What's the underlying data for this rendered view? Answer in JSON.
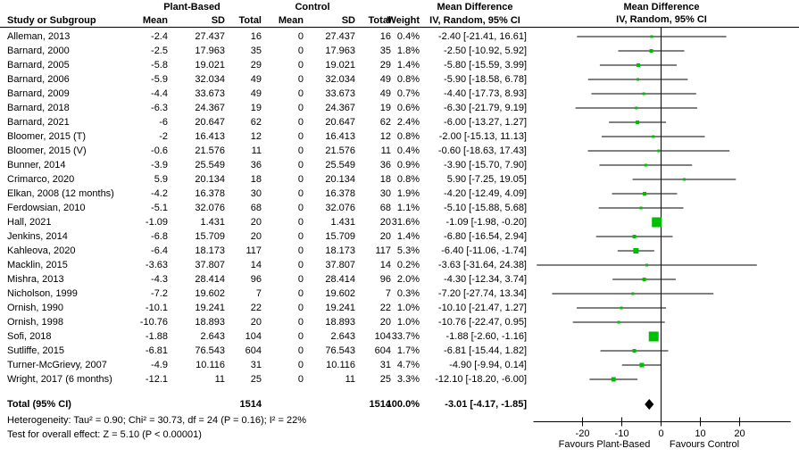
{
  "header": {
    "study_col": "Study or Subgroup",
    "group1": "Plant-Based",
    "group2": "Control",
    "mean": "Mean",
    "sd": "SD",
    "total": "Total",
    "weight": "Weight",
    "md_title": "Mean Difference",
    "md_method": "IV, Random, 95% CI"
  },
  "totals": {
    "label": "Total (95% CI)",
    "n1": "1514",
    "n2": "1514",
    "weight": "100.0%",
    "ci_text": "-3.01 [-4.17, -1.85]"
  },
  "footnotes": {
    "heterogeneity": "Heterogeneity: Tau² = 0.90; Chi² = 30.73, df = 24 (P = 0.16); I² = 22%",
    "overall_effect": "Test for overall effect: Z = 5.10 (P < 0.00001)"
  },
  "chart_data": {
    "type": "forest",
    "effect_measure": "Mean Difference",
    "model": "IV, Random, 95% CI",
    "x_ticks": [
      -20,
      -10,
      0,
      10,
      20
    ],
    "x_range": [
      -32.5,
      33
    ],
    "favours_left": "Favours Plant-Based",
    "favours_right": "Favours Control",
    "marker_color": "#00BF00",
    "line_color": "#000000",
    "pooled": {
      "md": -3.01,
      "lo": -4.17,
      "hi": -1.85,
      "weight": 100.0
    },
    "studies": [
      {
        "study": "Alleman, 2013",
        "mean1": "-2.4",
        "sd1": "27.437",
        "n1": "16",
        "mean2": "0",
        "sd2": "27.437",
        "n2": "16",
        "weight": "0.4%",
        "ci_text": "-2.40 [-21.41, 16.61]",
        "md": -2.4,
        "lo": -21.41,
        "hi": 16.61,
        "w": 0.4
      },
      {
        "study": "Barnard, 2000",
        "mean1": "-2.5",
        "sd1": "17.963",
        "n1": "35",
        "mean2": "0",
        "sd2": "17.963",
        "n2": "35",
        "weight": "1.8%",
        "ci_text": "-2.50 [-10.92, 5.92]",
        "md": -2.5,
        "lo": -10.92,
        "hi": 5.92,
        "w": 1.8
      },
      {
        "study": "Barnard, 2005",
        "mean1": "-5.8",
        "sd1": "19.021",
        "n1": "29",
        "mean2": "0",
        "sd2": "19.021",
        "n2": "29",
        "weight": "1.4%",
        "ci_text": "-5.80 [-15.59, 3.99]",
        "md": -5.8,
        "lo": -15.59,
        "hi": 3.99,
        "w": 1.4
      },
      {
        "study": "Barnard, 2006",
        "mean1": "-5.9",
        "sd1": "32.034",
        "n1": "49",
        "mean2": "0",
        "sd2": "32.034",
        "n2": "49",
        "weight": "0.8%",
        "ci_text": "-5.90 [-18.58, 6.78]",
        "md": -5.9,
        "lo": -18.58,
        "hi": 6.78,
        "w": 0.8
      },
      {
        "study": "Barnard, 2009",
        "mean1": "-4.4",
        "sd1": "33.673",
        "n1": "49",
        "mean2": "0",
        "sd2": "33.673",
        "n2": "49",
        "weight": "0.7%",
        "ci_text": "-4.40 [-17.73, 8.93]",
        "md": -4.4,
        "lo": -17.73,
        "hi": 8.93,
        "w": 0.7
      },
      {
        "study": "Barnard, 2018",
        "mean1": "-6.3",
        "sd1": "24.367",
        "n1": "19",
        "mean2": "0",
        "sd2": "24.367",
        "n2": "19",
        "weight": "0.6%",
        "ci_text": "-6.30 [-21.79, 9.19]",
        "md": -6.3,
        "lo": -21.79,
        "hi": 9.19,
        "w": 0.6
      },
      {
        "study": "Barnard, 2021",
        "mean1": "-6",
        "sd1": "20.647",
        "n1": "62",
        "mean2": "0",
        "sd2": "20.647",
        "n2": "62",
        "weight": "2.4%",
        "ci_text": "-6.00 [-13.27, 1.27]",
        "md": -6.0,
        "lo": -13.27,
        "hi": 1.27,
        "w": 2.4
      },
      {
        "study": "Bloomer, 2015 (T)",
        "mean1": "-2",
        "sd1": "16.413",
        "n1": "12",
        "mean2": "0",
        "sd2": "16.413",
        "n2": "12",
        "weight": "0.8%",
        "ci_text": "-2.00 [-15.13, 11.13]",
        "md": -2.0,
        "lo": -15.13,
        "hi": 11.13,
        "w": 0.8
      },
      {
        "study": "Bloomer, 2015 (V)",
        "mean1": "-0.6",
        "sd1": "21.576",
        "n1": "11",
        "mean2": "0",
        "sd2": "21.576",
        "n2": "11",
        "weight": "0.4%",
        "ci_text": "-0.60 [-18.63, 17.43]",
        "md": -0.6,
        "lo": -18.63,
        "hi": 17.43,
        "w": 0.4
      },
      {
        "study": "Bunner, 2014",
        "mean1": "-3.9",
        "sd1": "25.549",
        "n1": "36",
        "mean2": "0",
        "sd2": "25.549",
        "n2": "36",
        "weight": "0.9%",
        "ci_text": "-3.90 [-15.70, 7.90]",
        "md": -3.9,
        "lo": -15.7,
        "hi": 7.9,
        "w": 0.9
      },
      {
        "study": "Crimarco, 2020",
        "mean1": "5.9",
        "sd1": "20.134",
        "n1": "18",
        "mean2": "0",
        "sd2": "20.134",
        "n2": "18",
        "weight": "0.8%",
        "ci_text": "5.90 [-7.25, 19.05]",
        "md": 5.9,
        "lo": -7.25,
        "hi": 19.05,
        "w": 0.8
      },
      {
        "study": "Elkan, 2008 (12 months)",
        "mean1": "-4.2",
        "sd1": "16.378",
        "n1": "30",
        "mean2": "0",
        "sd2": "16.378",
        "n2": "30",
        "weight": "1.9%",
        "ci_text": "-4.20 [-12.49, 4.09]",
        "md": -4.2,
        "lo": -12.49,
        "hi": 4.09,
        "w": 1.9
      },
      {
        "study": "Ferdowsian, 2010",
        "mean1": "-5.1",
        "sd1": "32.076",
        "n1": "68",
        "mean2": "0",
        "sd2": "32.076",
        "n2": "68",
        "weight": "1.1%",
        "ci_text": "-5.10 [-15.88, 5.68]",
        "md": -5.1,
        "lo": -15.88,
        "hi": 5.68,
        "w": 1.1
      },
      {
        "study": "Hall, 2021",
        "mean1": "-1.09",
        "sd1": "1.431",
        "n1": "20",
        "mean2": "0",
        "sd2": "1.431",
        "n2": "20",
        "weight": "31.6%",
        "ci_text": "-1.09 [-1.98, -0.20]",
        "md": -1.09,
        "lo": -1.98,
        "hi": -0.2,
        "w": 31.6
      },
      {
        "study": "Jenkins, 2014",
        "mean1": "-6.8",
        "sd1": "15.709",
        "n1": "20",
        "mean2": "0",
        "sd2": "15.709",
        "n2": "20",
        "weight": "1.4%",
        "ci_text": "-6.80 [-16.54, 2.94]",
        "md": -6.8,
        "lo": -16.54,
        "hi": 2.94,
        "w": 1.4
      },
      {
        "study": "Kahleova, 2020",
        "mean1": "-6.4",
        "sd1": "18.173",
        "n1": "117",
        "mean2": "0",
        "sd2": "18.173",
        "n2": "117",
        "weight": "5.3%",
        "ci_text": "-6.40 [-11.06, -1.74]",
        "md": -6.4,
        "lo": -11.06,
        "hi": -1.74,
        "w": 5.3
      },
      {
        "study": "Macklin, 2015",
        "mean1": "-3.63",
        "sd1": "37.807",
        "n1": "14",
        "mean2": "0",
        "sd2": "37.807",
        "n2": "14",
        "weight": "0.2%",
        "ci_text": "-3.63 [-31.64, 24.38]",
        "md": -3.63,
        "lo": -31.64,
        "hi": 24.38,
        "w": 0.2
      },
      {
        "study": "Mishra, 2013",
        "mean1": "-4.3",
        "sd1": "28.414",
        "n1": "96",
        "mean2": "0",
        "sd2": "28.414",
        "n2": "96",
        "weight": "2.0%",
        "ci_text": "-4.30 [-12.34, 3.74]",
        "md": -4.3,
        "lo": -12.34,
        "hi": 3.74,
        "w": 2.0
      },
      {
        "study": "Nicholson, 1999",
        "mean1": "-7.2",
        "sd1": "19.602",
        "n1": "7",
        "mean2": "0",
        "sd2": "19.602",
        "n2": "7",
        "weight": "0.3%",
        "ci_text": "-7.20 [-27.74, 13.34]",
        "md": -7.2,
        "lo": -27.74,
        "hi": 13.34,
        "w": 0.3
      },
      {
        "study": "Ornish, 1990",
        "mean1": "-10.1",
        "sd1": "19.241",
        "n1": "22",
        "mean2": "0",
        "sd2": "19.241",
        "n2": "22",
        "weight": "1.0%",
        "ci_text": "-10.10 [-21.47, 1.27]",
        "md": -10.1,
        "lo": -21.47,
        "hi": 1.27,
        "w": 1.0
      },
      {
        "study": "Ornish, 1998",
        "mean1": "-10.76",
        "sd1": "18.893",
        "n1": "20",
        "mean2": "0",
        "sd2": "18.893",
        "n2": "20",
        "weight": "1.0%",
        "ci_text": "-10.76 [-22.47, 0.95]",
        "md": -10.76,
        "lo": -22.47,
        "hi": 0.95,
        "w": 1.0
      },
      {
        "study": "Sofi, 2018",
        "mean1": "-1.88",
        "sd1": "2.643",
        "n1": "104",
        "mean2": "0",
        "sd2": "2.643",
        "n2": "104",
        "weight": "33.7%",
        "ci_text": "-1.88 [-2.60, -1.16]",
        "md": -1.88,
        "lo": -2.6,
        "hi": -1.16,
        "w": 33.7
      },
      {
        "study": "Sutliffe, 2015",
        "mean1": "-6.81",
        "sd1": "76.543",
        "n1": "604",
        "mean2": "0",
        "sd2": "76.543",
        "n2": "604",
        "weight": "1.7%",
        "ci_text": "-6.81 [-15.44, 1.82]",
        "md": -6.81,
        "lo": -15.44,
        "hi": 1.82,
        "w": 1.7
      },
      {
        "study": "Turner-McGrievy, 2007",
        "mean1": "-4.9",
        "sd1": "10.116",
        "n1": "31",
        "mean2": "0",
        "sd2": "10.116",
        "n2": "31",
        "weight": "4.7%",
        "ci_text": "-4.90 [-9.94, 0.14]",
        "md": -4.9,
        "lo": -9.94,
        "hi": 0.14,
        "w": 4.7
      },
      {
        "study": "Wright, 2017 (6 months)",
        "mean1": "-12.1",
        "sd1": "11",
        "n1": "25",
        "mean2": "0",
        "sd2": "11",
        "n2": "25",
        "weight": "3.3%",
        "ci_text": "-12.10 [-18.20, -6.00]",
        "md": -12.1,
        "lo": -18.2,
        "hi": -6.0,
        "w": 3.3
      }
    ]
  }
}
